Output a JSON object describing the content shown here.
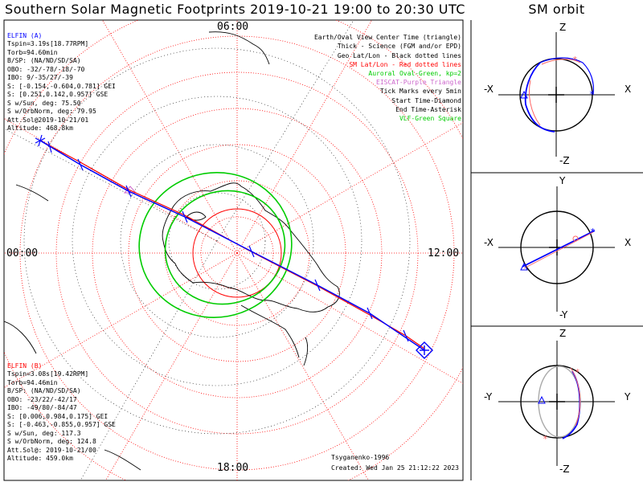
{
  "title": "Southern Solar Magnetic Footprints 2019-10-21 19:00 to 20:30 UTC",
  "orbit_title": "SM orbit",
  "clock_labels": {
    "top": "06:00",
    "left": "00:00",
    "right": "12:00",
    "bottom": "18:00"
  },
  "elfin_a": {
    "name": "ELFIN (A)",
    "lines": [
      "Tspin=3.19s[18.77RPM]",
      "Torb=94.60min",
      "B/SP: (NA/ND/SD/SA)",
      "OBO: -32/-78/-18/-70",
      "IBO: 9/-35/27/-39",
      "S: [-0.154,-0.604,0.781] GEI",
      "S: [0.251,0.142,0.957] GSE",
      "S w/Sun, deg: 75.50",
      "S w/OrbNorm, deg: 79.95",
      "Att.Sol@2019-10-21/01",
      "Altitude: 468.8km"
    ],
    "color": "#0000ff"
  },
  "elfin_b": {
    "name": "ELFIN (B)",
    "lines": [
      "Tspin=3.08s[19.42RPM]",
      "Torb=94.46min",
      "B/SP: (NA/ND/SD/SA)",
      "OBO: -23/22/-42/17",
      "IBO: -49/80/-84/47",
      "S: [0.006,0.984,0.175] GEI",
      "S: [-0.463,-0.855,0.957] GSE",
      "S w/Sun, deg: 117.3",
      "S w/OrbNorm, deg: 124.8",
      "Att.Sol@: 2019-10-21/00",
      "Altitude: 459.0km"
    ],
    "color": "#ff0000"
  },
  "legend": [
    {
      "text": "Earth/Oval View Center Time (triangle)",
      "color": "#000000"
    },
    {
      "text": "Thick - Science (FGM and/or EPD)",
      "color": "#000000"
    },
    {
      "text": "Geo Lat/Lon - Black dotted lines",
      "color": "#000000"
    },
    {
      "text": "SM Lat/Lon - Red dotted lines",
      "color": "#ff0000"
    },
    {
      "text": "Auroral Oval-Green, kp=2",
      "color": "#00cc00"
    },
    {
      "text": "EISCAT-Purple Triangle",
      "color": "#cc66cc"
    },
    {
      "text": "Tick Marks every 5min",
      "color": "#000000"
    },
    {
      "text": "Start Time-Diamond",
      "color": "#000000"
    },
    {
      "text": "End Time-Asterisk",
      "color": "#000000"
    },
    {
      "text": "VLF-Green Square",
      "color": "#00cc00"
    }
  ],
  "footer": {
    "model": "Tsyganenko-1996",
    "created": "Created: Wed Jan 25 21:12:22 2023"
  },
  "panels": [
    {
      "top": "Z",
      "bottom": "-Z",
      "left": "-X",
      "right": "X"
    },
    {
      "top": "Y",
      "bottom": "-Y",
      "left": "-X",
      "right": "X"
    },
    {
      "top": "Z",
      "bottom": "-Z",
      "left": "-Y",
      "right": "Y"
    }
  ]
}
